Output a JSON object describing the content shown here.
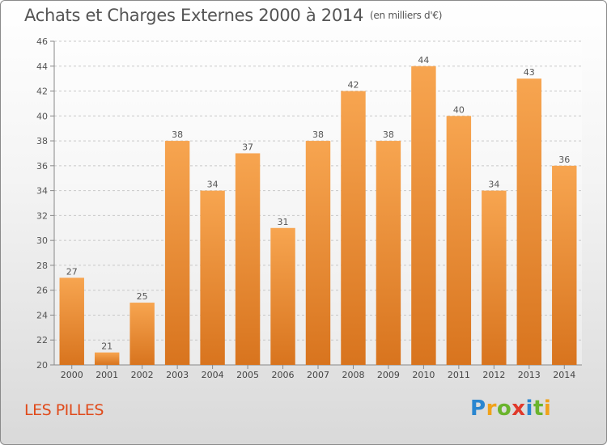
{
  "title": "Achats et Charges Externes 2000 à 2014",
  "unit": "(en milliers d'€)",
  "commune": "LES PILLES",
  "logo": {
    "text": "Proxiti",
    "letters": [
      {
        "ch": "P",
        "color": "#2a86d0"
      },
      {
        "ch": "r",
        "color": "#f0a21a"
      },
      {
        "ch": "o",
        "color": "#6ab42d"
      },
      {
        "ch": "x",
        "color": "#e0392b"
      },
      {
        "ch": "i",
        "color": "#2a86d0"
      },
      {
        "ch": "t",
        "color": "#6ab42d"
      },
      {
        "ch": "i",
        "color": "#f0a21a"
      }
    ]
  },
  "chart_data": {
    "type": "bar",
    "categories": [
      "2000",
      "2001",
      "2002",
      "2003",
      "2004",
      "2005",
      "2006",
      "2007",
      "2008",
      "2009",
      "2010",
      "2011",
      "2012",
      "2013",
      "2014"
    ],
    "values": [
      27,
      21,
      25,
      38,
      34,
      37,
      31,
      38,
      42,
      38,
      44,
      40,
      34,
      43,
      36
    ],
    "ylim": [
      20,
      46
    ],
    "yticks": [
      20,
      22,
      24,
      26,
      28,
      30,
      32,
      34,
      36,
      38,
      40,
      42,
      44,
      46
    ],
    "grid": "horizontal-dashed",
    "bar_color_top": "#f7a550",
    "bar_color_bottom": "#d8741e"
  }
}
